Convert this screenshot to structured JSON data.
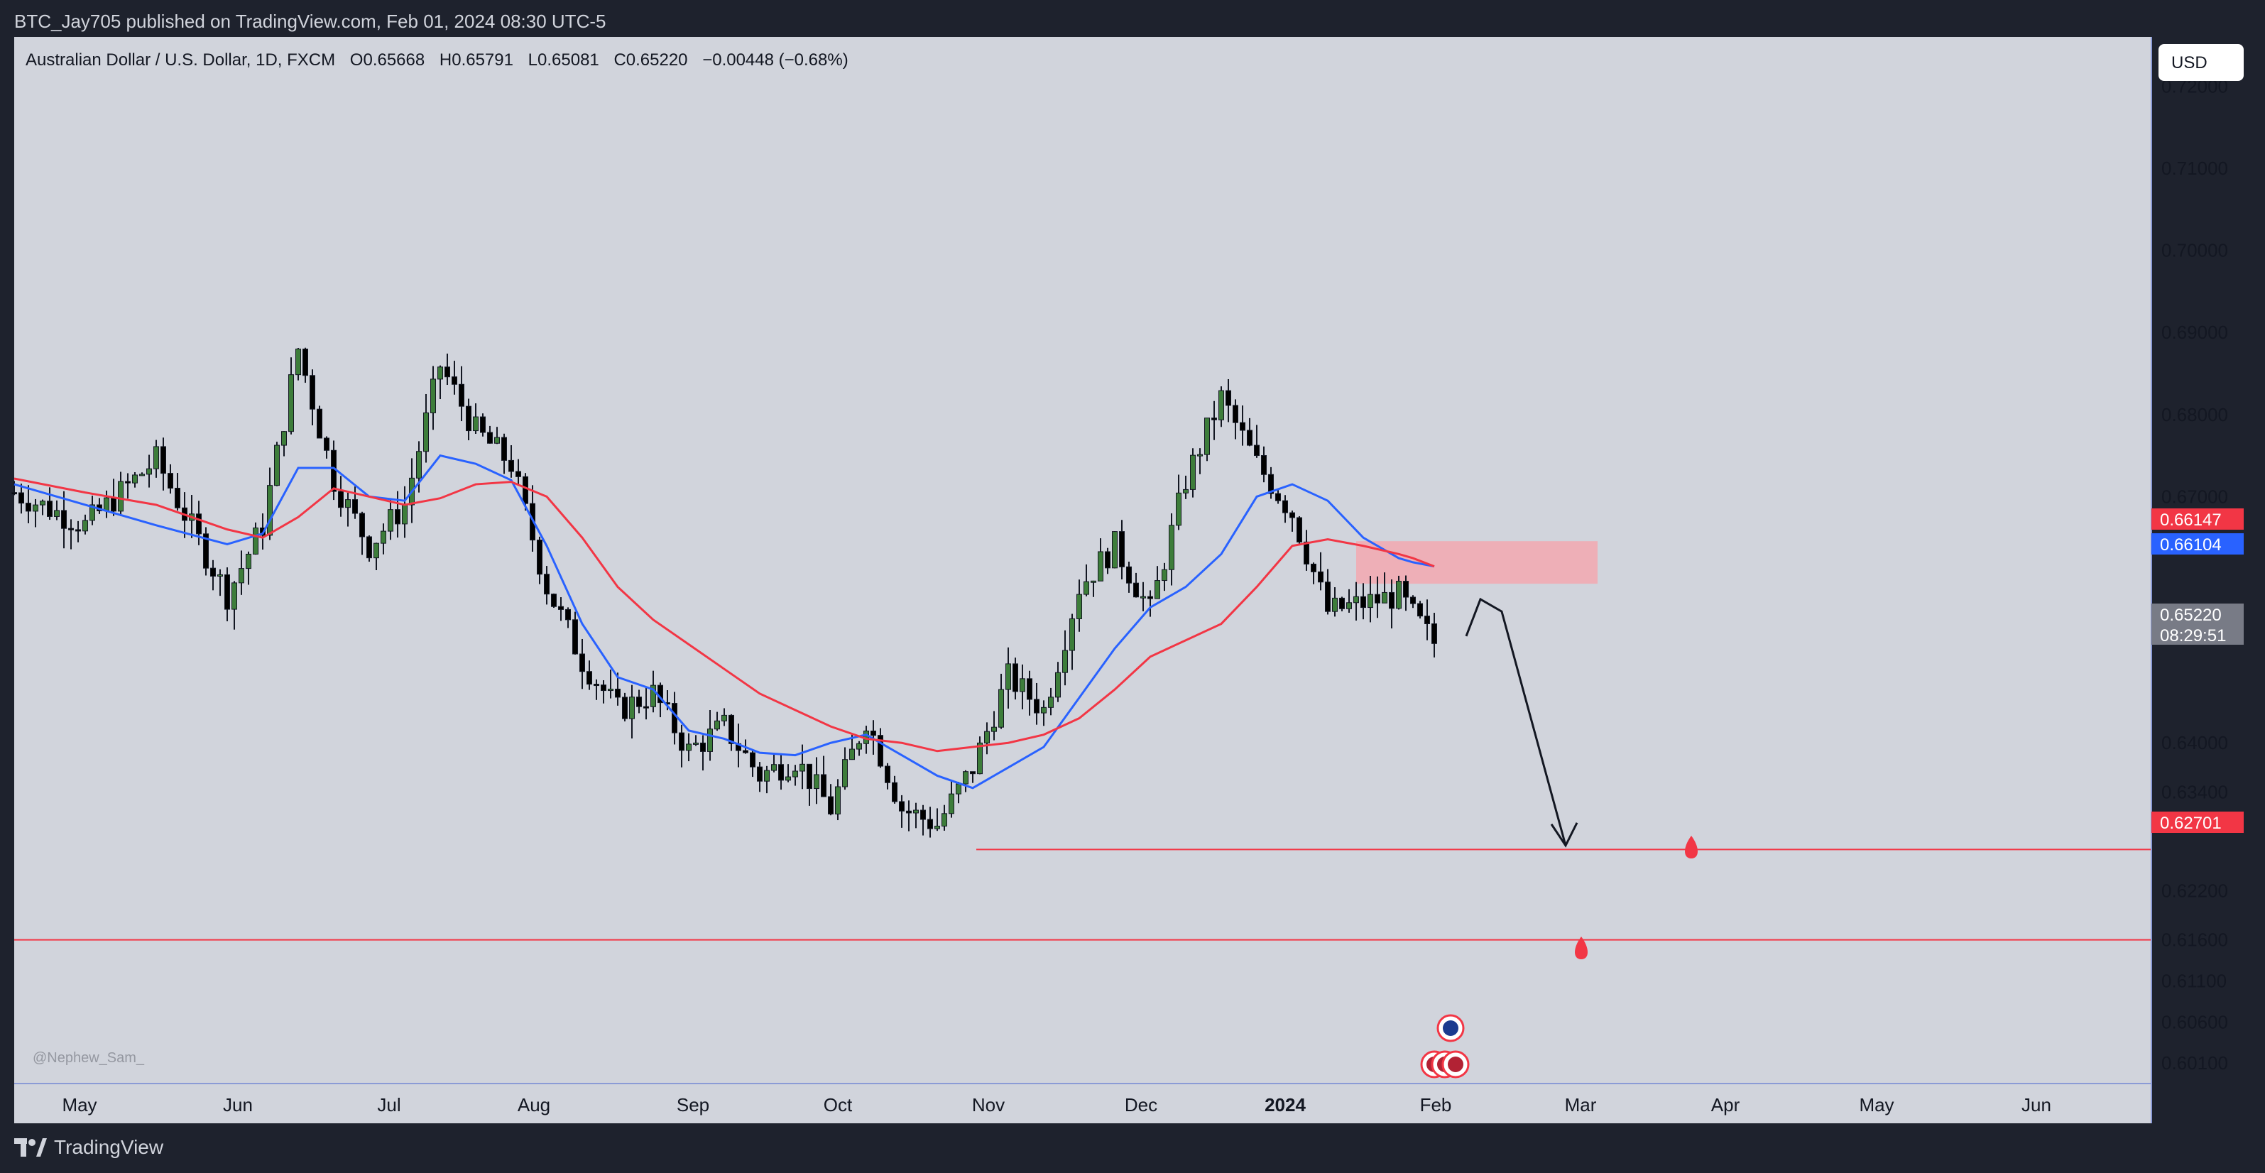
{
  "header": {
    "publisher_line": "BTC_Jay705 published on TradingView.com, Feb 01, 2024 08:30 UTC-5"
  },
  "legend": {
    "symbol": "Australian Dollar / U.S. Dollar, 1D, FXCM",
    "open_label": "O0.65668",
    "high_label": "H0.65791",
    "low_label": "L0.65081",
    "close_label": "C0.65220",
    "change_label": "−0.00448 (−0.68%)"
  },
  "currency_button": "USD",
  "watermark": "@Nephew_Sam_",
  "footer": {
    "brand": "TradingView"
  },
  "colors": {
    "background": "#d1d4dc",
    "bull": "#3d7d3a",
    "bear": "#000000",
    "ma_fast": "#2962ff",
    "ma_slow": "#f23645",
    "zone": "#f7a3ab",
    "accent_red": "#f23645",
    "accent_blue": "#2962ff"
  },
  "chart_data": {
    "type": "candlestick",
    "y_ticks": [
      "0.72000",
      "0.71000",
      "0.70000",
      "0.69000",
      "0.68000",
      "0.67000",
      "0.64000",
      "0.63400",
      "0.62200",
      "0.61600",
      "0.61100",
      "0.60600",
      "0.60100"
    ],
    "x_ticks": [
      "May",
      "Jun",
      "Jul",
      "Aug",
      "Sep",
      "Oct",
      "Nov",
      "Dec",
      "2024",
      "Feb",
      "Mar",
      "Apr",
      "May",
      "Jun"
    ],
    "price_labels": [
      {
        "value": "0.66147",
        "color": "#f23645"
      },
      {
        "value": "0.66104",
        "color": "#2962ff"
      },
      {
        "value": "0.65220",
        "color": "#787b86",
        "sub": "08:29:51"
      },
      {
        "value": "0.62701",
        "color": "#f23645"
      }
    ],
    "series": [
      {
        "name": "MA fast",
        "type": "line",
        "x": [
          0,
          50,
          100,
          150,
          175,
          200,
          225,
          250,
          275,
          300,
          325,
          350,
          375,
          400,
          425,
          450,
          475,
          500,
          525,
          550,
          575,
          600,
          625,
          650,
          675,
          700,
          725,
          750,
          775,
          800,
          825,
          850,
          875,
          900,
          925,
          950,
          975,
          985,
          1000
        ],
        "y": [
          0.6715,
          0.669,
          0.6665,
          0.6642,
          0.6655,
          0.6735,
          0.6735,
          0.67,
          0.6695,
          0.675,
          0.674,
          0.672,
          0.664,
          0.6545,
          0.648,
          0.6465,
          0.6415,
          0.6405,
          0.6388,
          0.6385,
          0.64,
          0.641,
          0.6385,
          0.636,
          0.6345,
          0.637,
          0.6395,
          0.6455,
          0.6515,
          0.6565,
          0.659,
          0.663,
          0.67,
          0.6715,
          0.6695,
          0.665,
          0.6625,
          0.662,
          0.6615
        ]
      },
      {
        "name": "MA slow",
        "type": "line",
        "x": [
          0,
          50,
          100,
          150,
          175,
          200,
          225,
          250,
          275,
          300,
          325,
          350,
          375,
          400,
          425,
          450,
          475,
          500,
          525,
          550,
          575,
          600,
          625,
          650,
          675,
          700,
          725,
          750,
          775,
          800,
          825,
          850,
          875,
          900,
          925,
          950,
          975,
          985,
          1000
        ],
        "y": [
          0.6722,
          0.6705,
          0.669,
          0.666,
          0.665,
          0.6675,
          0.671,
          0.67,
          0.669,
          0.6698,
          0.6715,
          0.6718,
          0.67,
          0.665,
          0.659,
          0.655,
          0.652,
          0.649,
          0.646,
          0.644,
          0.642,
          0.6405,
          0.64,
          0.639,
          0.6395,
          0.64,
          0.641,
          0.643,
          0.6465,
          0.6505,
          0.6525,
          0.6545,
          0.659,
          0.664,
          0.6648,
          0.664,
          0.663,
          0.6625,
          0.6615
        ]
      },
      {
        "name": "Price path",
        "type": "candles",
        "x": [
          0,
          50,
          100,
          150,
          175,
          200,
          225,
          250,
          275,
          300,
          325,
          350,
          375,
          400,
          425,
          450,
          475,
          500,
          525,
          550,
          575,
          600,
          625,
          650,
          675,
          700,
          725,
          750,
          775,
          800,
          825,
          850,
          875,
          900,
          925,
          950,
          975,
          985,
          1000
        ],
        "y": [
          0.6705,
          0.6665,
          0.6745,
          0.658,
          0.6665,
          0.688,
          0.672,
          0.664,
          0.669,
          0.686,
          0.678,
          0.674,
          0.659,
          0.65,
          0.644,
          0.646,
          0.639,
          0.642,
          0.636,
          0.638,
          0.632,
          0.643,
          0.632,
          0.63,
          0.637,
          0.648,
          0.644,
          0.659,
          0.664,
          0.656,
          0.672,
          0.682,
          0.674,
          0.668,
          0.656,
          0.657,
          0.658,
          0.6555,
          0.6522
        ]
      }
    ],
    "annotations": [
      {
        "type": "zone",
        "x_start": 925,
        "x_end": 1050,
        "y_top": 0.66457,
        "y_bottom": 0.65939
      },
      {
        "type": "hline",
        "y": 0.62701,
        "x_start": 650
      },
      {
        "type": "hline",
        "y": 0.616
      },
      {
        "type": "projection_arrow",
        "points": [
          [
            1000,
            0.653
          ],
          [
            1010,
            0.6575
          ],
          [
            1025,
            0.656
          ],
          [
            1070,
            0.6275
          ]
        ]
      }
    ],
    "ylim": [
      0.5985,
      0.726
    ]
  }
}
